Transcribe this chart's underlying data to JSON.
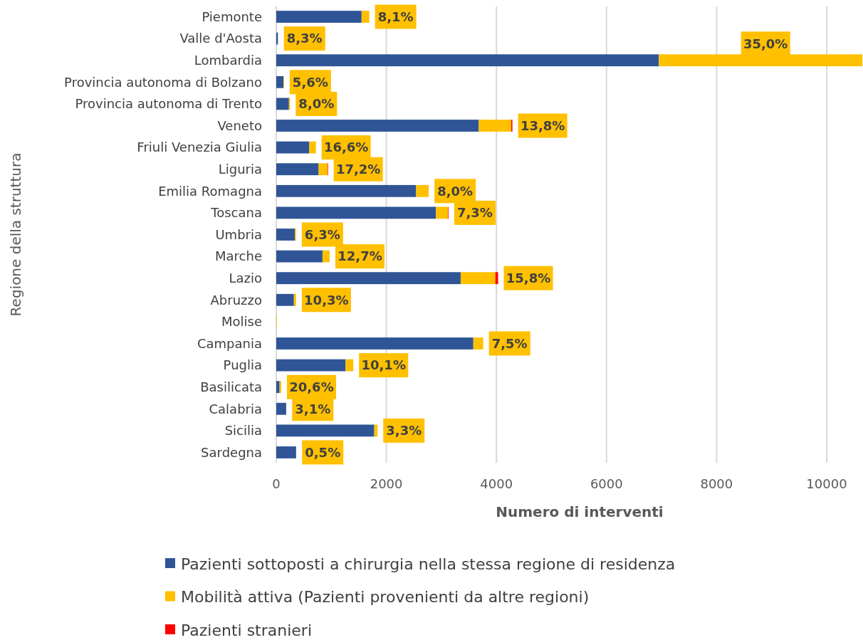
{
  "chart_data": {
    "type": "bar",
    "orientation": "horizontal",
    "stacked": true,
    "ylabel": "Regione della struttura",
    "xlabel": "Numero di interventi",
    "categories": [
      "Piemonte",
      "Valle d'Aosta",
      "Lombardia",
      "Provincia autonoma di Bolzano",
      "Provincia autonoma di Trento",
      "Veneto",
      "Friuli Venezia Giulia",
      "Liguria",
      "Emilia Romagna",
      "Toscana",
      "Umbria",
      "Marche",
      "Lazio",
      "Abruzzo",
      "Molise",
      "Campania",
      "Puglia",
      "Basilicata",
      "Calabria",
      "Sicilia",
      "Sardegna"
    ],
    "series": [
      {
        "name": "Pazienti sottoposti a chirurgia nella stessa regione di residenza",
        "color": "#2f5597",
        "values": [
          1550,
          30,
          6950,
          130,
          230,
          3680,
          600,
          770,
          2540,
          2900,
          340,
          840,
          3350,
          320,
          0,
          3580,
          1260,
          60,
          180,
          1780,
          360
        ]
      },
      {
        "name": "Mobilità attiva (Pazienti provenienti da altre regioni)",
        "color": "#ffc000",
        "values": [
          140,
          null,
          3700,
          10,
          20,
          590,
          120,
          160,
          230,
          220,
          20,
          130,
          630,
          40,
          10,
          180,
          140,
          30,
          null,
          60,
          null
        ]
      },
      {
        "name": "Pazienti stranieri",
        "color": "#ff0000",
        "values": [
          0,
          0,
          0,
          0,
          0,
          20,
          0,
          10,
          0,
          10,
          0,
          0,
          50,
          0,
          0,
          0,
          0,
          0,
          0,
          0,
          0
        ]
      }
    ],
    "annotations": [
      {
        "text": "8,1%",
        "x": 1690,
        "y": "Piemonte"
      },
      {
        "text": "8,3%",
        "x": 35,
        "y": "Valle d'Aosta"
      },
      {
        "text": "35,0%",
        "x": 8890,
        "y": "Lombardia"
      },
      {
        "text": "5,6%",
        "x": 140,
        "y": "Provincia autonoma di Bolzano"
      },
      {
        "text": "8,0%",
        "x": 250,
        "y": "Provincia autonoma di Trento"
      },
      {
        "text": "13,8%",
        "x": 4290,
        "y": "Veneto"
      },
      {
        "text": "16,6%",
        "x": 720,
        "y": "Friuli Venezia Giulia"
      },
      {
        "text": "17,2%",
        "x": 940,
        "y": "Liguria"
      },
      {
        "text": "8,0%",
        "x": 2770,
        "y": "Emilia Romagna"
      },
      {
        "text": "7,3%",
        "x": 3130,
        "y": "Toscana"
      },
      {
        "text": "6,3%",
        "x": 360,
        "y": "Umbria"
      },
      {
        "text": "12,7%",
        "x": 970,
        "y": "Marche"
      },
      {
        "text": "15,8%",
        "x": 4030,
        "y": "Lazio"
      },
      {
        "text": "10,3%",
        "x": 360,
        "y": "Abruzzo"
      },
      {
        "text": "7,5%",
        "x": 3760,
        "y": "Campania"
      },
      {
        "text": "10,1%",
        "x": 1400,
        "y": "Puglia"
      },
      {
        "text": "20,6%",
        "x": 90,
        "y": "Basilicata"
      },
      {
        "text": "3,1%",
        "x": 185,
        "y": "Calabria"
      },
      {
        "text": "3,3%",
        "x": 1840,
        "y": "Sicilia"
      },
      {
        "text": "0,5%",
        "x": 365,
        "y": "Sardegna"
      }
    ],
    "xlim": [
      0,
      10660
    ],
    "xticks": [
      0,
      2000,
      4000,
      6000,
      8000,
      10000
    ],
    "grid": "x",
    "legend": "bottom"
  }
}
